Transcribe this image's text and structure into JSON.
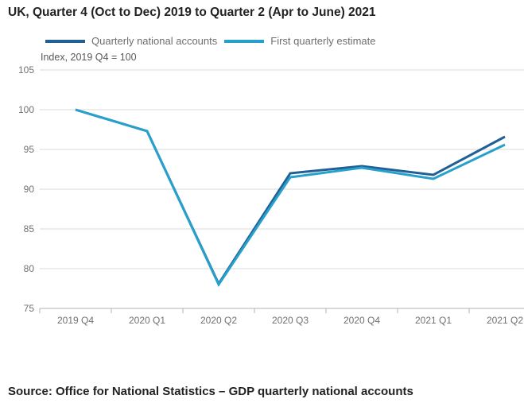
{
  "page": {
    "title": "UK, Quarter 4 (Oct to Dec) 2019 to Quarter 2 (Apr to June) 2021",
    "source": "Source: Office for National Statistics – GDP quarterly national accounts"
  },
  "chart_data": {
    "type": "line",
    "title": "UK, Quarter 4 (Oct to Dec) 2019 to Quarter 2 (Apr to June) 2021",
    "unit_label": "Index, 2019 Q4 = 100",
    "categories": [
      "2019 Q4",
      "2020 Q1",
      "2020 Q2",
      "2020 Q3",
      "2020 Q4",
      "2021 Q1",
      "2021 Q2"
    ],
    "series": [
      {
        "name": "Quarterly national accounts",
        "color": "#206095",
        "values": [
          100.0,
          97.3,
          78.1,
          92.0,
          92.9,
          91.8,
          96.6
        ]
      },
      {
        "name": "First quarterly estimate",
        "color": "#27A0CC",
        "values": [
          100.0,
          97.3,
          78.0,
          91.5,
          92.7,
          91.3,
          95.6
        ]
      }
    ],
    "ylim": [
      75,
      105
    ],
    "yticks": [
      75,
      80,
      85,
      90,
      95,
      100,
      105
    ],
    "grid": "horizontal",
    "legend_position": "top",
    "colors": {
      "grid_line": "#d9d9d9",
      "axis_line": "#b1b4b6",
      "tick_text": "#707071"
    }
  }
}
